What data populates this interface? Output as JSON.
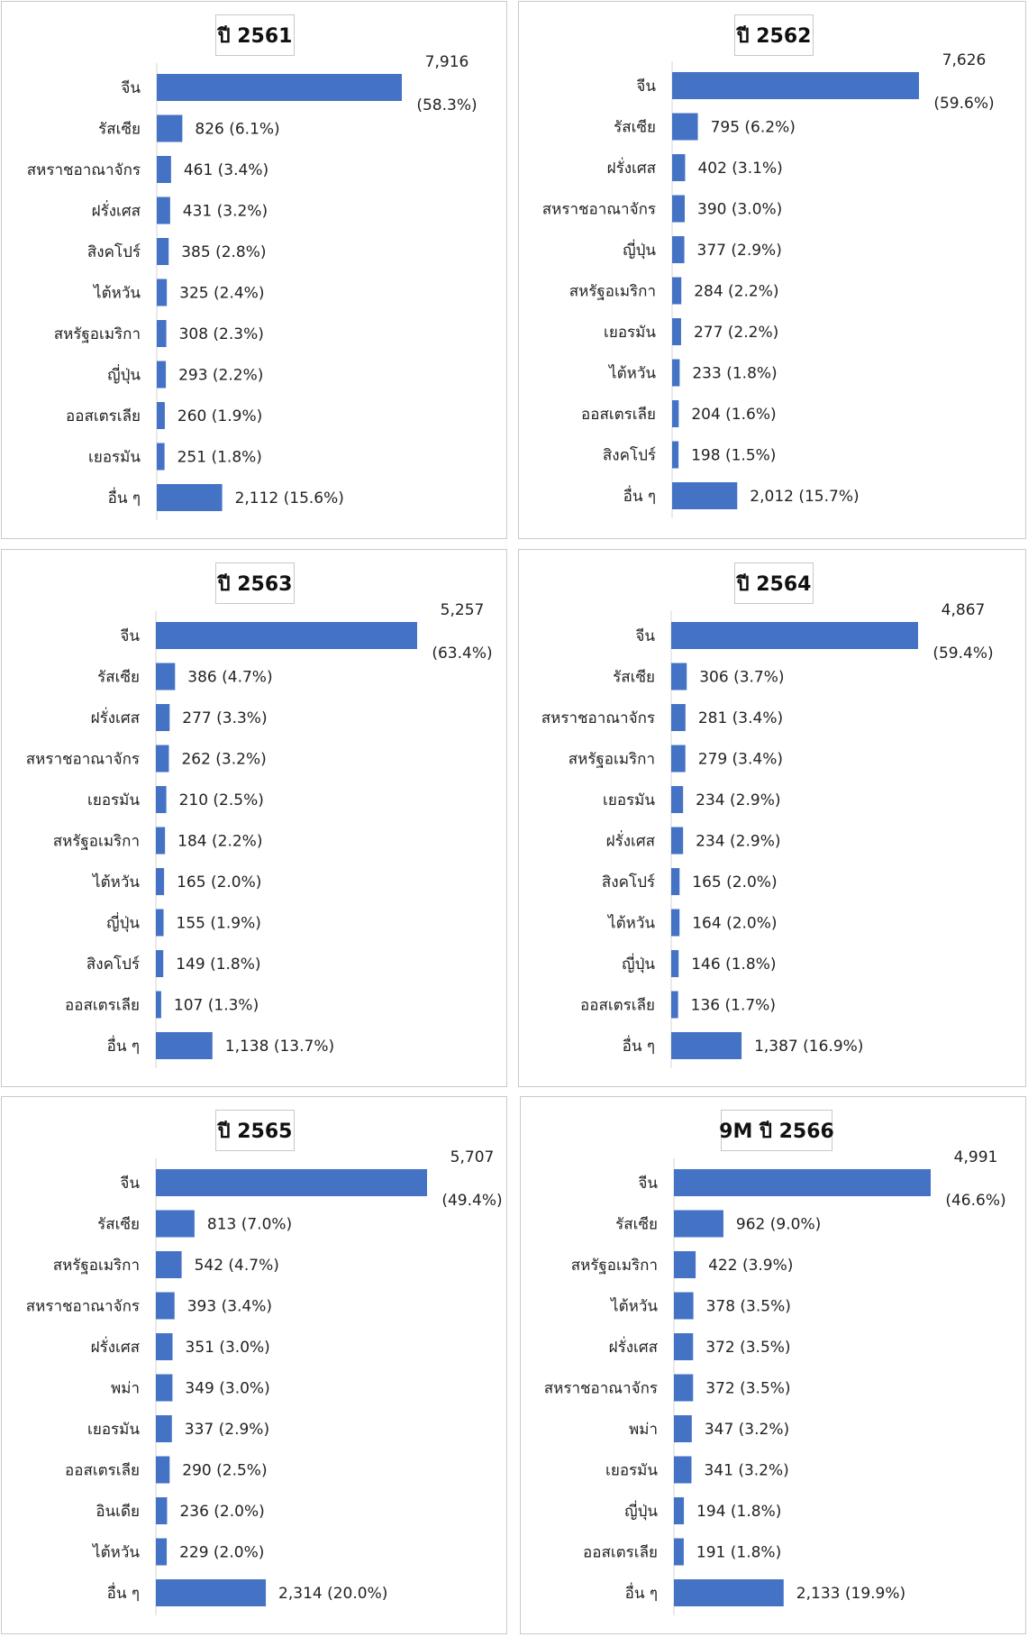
{
  "chart_data": [
    {
      "type": "bar",
      "orientation": "horizontal",
      "title": "ปี 2561",
      "categories": [
        "จีน",
        "รัสเซีย",
        "สหราชอาณาจักร",
        "ฝรั่งเศส",
        "สิงคโปร์",
        "ไต้หวัน",
        "สหรัฐอเมริกา",
        "ญี่ปุ่น",
        "ออสเตรเลีย",
        "เยอรมัน",
        "อื่น ๆ"
      ],
      "values": [
        7916,
        826,
        461,
        431,
        385,
        325,
        308,
        293,
        260,
        251,
        2112
      ],
      "labels": [
        "826 (6.1%)",
        "461 (3.4%)",
        "431 (3.2%)",
        "385 (2.8%)",
        "325 (2.4%)",
        "308 (2.3%)",
        "293 (2.2%)",
        "260 (1.9%)",
        "251 (1.8%)",
        "2,112 (15.6%)"
      ],
      "top_value": "7,916",
      "top_pct": "(58.3%)",
      "xlim": [
        0,
        9300
      ]
    },
    {
      "type": "bar",
      "orientation": "horizontal",
      "title": "ปี 2562",
      "categories": [
        "จีน",
        "รัสเซีย",
        "ฝรั่งเศส",
        "สหราชอาณาจักร",
        "ญี่ปุ่น",
        "สหรัฐอเมริกา",
        "เยอรมัน",
        "ไต้หวัน",
        "ออสเตรเลีย",
        "สิงคโปร์",
        "อื่น ๆ"
      ],
      "values": [
        7626,
        795,
        402,
        390,
        377,
        284,
        277,
        233,
        204,
        198,
        2012
      ],
      "labels": [
        "795 (6.2%)",
        "402 (3.1%)",
        "390 (3.0%)",
        "377 (2.9%)",
        "284 (2.2%)",
        "277 (2.2%)",
        "233 (1.8%)",
        "204 (1.6%)",
        "198 (1.5%)",
        "2,012 (15.7%)"
      ],
      "top_value": "7,626",
      "top_pct": "(59.6%)",
      "xlim": [
        0,
        8800
      ]
    },
    {
      "type": "bar",
      "orientation": "horizontal",
      "title": "ปี 2563",
      "categories": [
        "จีน",
        "รัสเซีย",
        "ฝรั่งเศส",
        "สหราชอาณาจักร",
        "เยอรมัน",
        "สหรัฐอเมริกา",
        "ไต้หวัน",
        "ญี่ปุ่น",
        "สิงคโปร์",
        "ออสเตรเลีย",
        "อื่น ๆ"
      ],
      "values": [
        5257,
        386,
        277,
        262,
        210,
        184,
        165,
        155,
        149,
        107,
        1138
      ],
      "labels": [
        "386 (4.7%)",
        "277 (3.3%)",
        "262 (3.2%)",
        "210 (2.5%)",
        "184 (2.2%)",
        "165 (2.0%)",
        "155 (1.9%)",
        "149 (1.8%)",
        "107 (1.3%)",
        "1,138 (13.7%)"
      ],
      "top_value": "5,257",
      "top_pct": "(63.4%)",
      "xlim": [
        0,
        5700
      ]
    },
    {
      "type": "bar",
      "orientation": "horizontal",
      "title": "ปี 2564",
      "categories": [
        "จีน",
        "รัสเซีย",
        "สหราชอาณาจักร",
        "สหรัฐอเมริกา",
        "เยอรมัน",
        "ฝรั่งเศส",
        "สิงคโปร์",
        "ไต้หวัน",
        "ญี่ปุ่น",
        "ออสเตรเลีย",
        "อื่น ๆ"
      ],
      "values": [
        4867,
        306,
        281,
        279,
        234,
        234,
        165,
        164,
        146,
        136,
        1387
      ],
      "labels": [
        "306 (3.7%)",
        "281 (3.4%)",
        "279 (3.4%)",
        "234 (2.9%)",
        "234 (2.9%)",
        "165 (2.0%)",
        "164 (2.0%)",
        "146 (1.8%)",
        "136 (1.7%)",
        "1,387 (16.9%)"
      ],
      "top_value": "4,867",
      "top_pct": "(59.4%)",
      "xlim": [
        0,
        5650
      ]
    },
    {
      "type": "bar",
      "orientation": "horizontal",
      "title": "ปี 2565",
      "categories": [
        "จีน",
        "รัสเซีย",
        "สหรัฐอเมริกา",
        "สหราชอาณาจักร",
        "ฝรั่งเศส",
        "พม่า",
        "เยอรมัน",
        "ออสเตรเลีย",
        "อินเดีย",
        "ไต้หวัน",
        "อื่น ๆ"
      ],
      "values": [
        5707,
        813,
        542,
        393,
        351,
        349,
        337,
        290,
        236,
        229,
        2314
      ],
      "labels": [
        "813 (7.0%)",
        "542 (4.7%)",
        "393 (3.4%)",
        "351 (3.0%)",
        "349 (3.0%)",
        "337 (2.9%)",
        "290 (2.5%)",
        "236 (2.0%)",
        "229 (2.0%)",
        "2,314 (20.0%)"
      ],
      "top_value": "5,707",
      "top_pct": "(49.4%)",
      "xlim": [
        0,
        6100
      ]
    },
    {
      "type": "bar",
      "orientation": "horizontal",
      "title": "9M ปี 2566",
      "categories": [
        "จีน",
        "รัสเซีย",
        "สหรัฐอเมริกา",
        "ไต้หวัน",
        "ฝรั่งเศส",
        "สหราชอาณาจักร",
        "พม่า",
        "เยอรมัน",
        "ญี่ปุ่น",
        "ออสเตรเลีย",
        "อื่น ๆ"
      ],
      "values": [
        4991,
        962,
        422,
        378,
        372,
        372,
        347,
        341,
        194,
        191,
        2133
      ],
      "labels": [
        "962 (9.0%)",
        "422 (3.9%)",
        "378 (3.5%)",
        "372 (3.5%)",
        "372 (3.5%)",
        "347 (3.2%)",
        "341 (3.2%)",
        "194 (1.8%)",
        "191 (1.8%)",
        "2,133 (19.9%)"
      ],
      "top_value": "4,991",
      "top_pct": "(46.6%)",
      "xlim": [
        0,
        5500
      ]
    }
  ]
}
